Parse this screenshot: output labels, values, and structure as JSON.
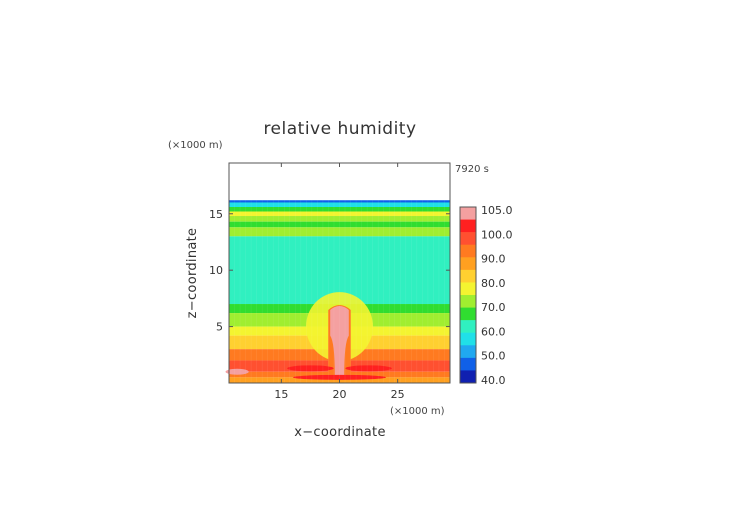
{
  "chart_data": {
    "type": "heatmap",
    "title": "relative humidity",
    "xlabel": "x−coordinate",
    "ylabel": "z−coordinate",
    "x_unit": "(×1000 m)",
    "y_unit": "(×1000 m)",
    "time_label": "7920 s",
    "xlim": [
      10.5,
      29.5
    ],
    "ylim": [
      0,
      19.5
    ],
    "x_ticks": [
      15,
      20,
      25
    ],
    "y_ticks": [
      5,
      10,
      15
    ],
    "colorbar": {
      "labels": [
        "105.0",
        "100.0",
        "90.0",
        "80.0",
        "70.0",
        "60.0",
        "50.0",
        "40.0"
      ],
      "levels": [
        {
          "value": 102.5,
          "color": "#f4a0a0"
        },
        {
          "value": 100,
          "color": "#ff2020"
        },
        {
          "value": 95,
          "color": "#ff5030"
        },
        {
          "value": 90,
          "color": "#ff7a20"
        },
        {
          "value": 85,
          "color": "#ffa020"
        },
        {
          "value": 80,
          "color": "#ffd030"
        },
        {
          "value": 75,
          "color": "#f4f430"
        },
        {
          "value": 70,
          "color": "#a0ee30"
        },
        {
          "value": 65,
          "color": "#30dd30"
        },
        {
          "value": 60,
          "color": "#30f0c0"
        },
        {
          "value": 55,
          "color": "#20e0e8"
        },
        {
          "value": 50,
          "color": "#20a8f0"
        },
        {
          "value": 45,
          "color": "#1060e8"
        },
        {
          "value": 40,
          "color": "#1020b0"
        }
      ]
    },
    "fields": {
      "above_top": "no data (white) above about 16.2",
      "layers": [
        {
          "z": [
            16.0,
            16.2
          ],
          "rh": 45
        },
        {
          "z": [
            15.6,
            16.0
          ],
          "rh": 55
        },
        {
          "z": [
            15.2,
            15.6
          ],
          "rh": 65
        },
        {
          "z": [
            14.8,
            15.2
          ],
          "rh": 75
        },
        {
          "z": [
            14.3,
            14.8
          ],
          "rh": 70
        },
        {
          "z": [
            13.8,
            14.3
          ],
          "rh": 65
        },
        {
          "z": [
            13.0,
            13.8
          ],
          "rh": 68
        },
        {
          "z": [
            7.0,
            13.0
          ],
          "rh": 60
        },
        {
          "z": [
            6.2,
            7.0
          ],
          "rh": 65
        },
        {
          "z": [
            5.0,
            6.2
          ],
          "rh": 68
        },
        {
          "z": [
            4.2,
            5.0
          ],
          "rh": 75
        },
        {
          "z": [
            3.0,
            4.2
          ],
          "rh": 80
        },
        {
          "z": [
            2.0,
            3.0
          ],
          "rh": 88
        },
        {
          "z": [
            1.0,
            2.0
          ],
          "rh": 95
        },
        {
          "z": [
            0.5,
            1.0
          ],
          "rh": 90
        },
        {
          "z": [
            0.0,
            0.5
          ],
          "rh": 85
        }
      ],
      "plume": {
        "x_center": 20,
        "top": 7.0,
        "width_top": 1.6,
        "stem_width": 0.8,
        "rh": 102.5
      }
    }
  }
}
